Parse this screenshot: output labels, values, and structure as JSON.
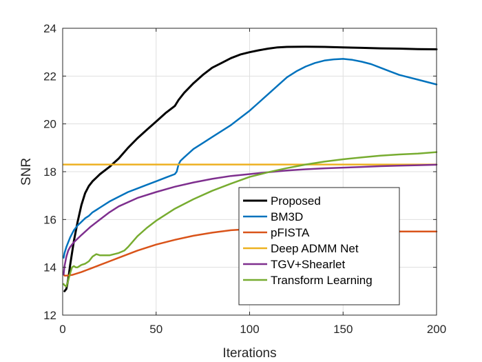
{
  "chart_data": {
    "type": "line",
    "title": "",
    "xlabel": "Iterations",
    "ylabel": "SNR",
    "xlim": [
      0,
      200
    ],
    "ylim": [
      12,
      24
    ],
    "xticks": [
      0,
      50,
      100,
      150,
      200
    ],
    "yticks": [
      12,
      14,
      16,
      18,
      20,
      22,
      24
    ],
    "grid": true,
    "legend_position": "bottom-right",
    "series": [
      {
        "name": "Proposed",
        "color": "#000000",
        "x": [
          1,
          2,
          3,
          4,
          5,
          6,
          8,
          10,
          12,
          14,
          16,
          18,
          20,
          25,
          30,
          35,
          40,
          45,
          50,
          55,
          60,
          62,
          65,
          70,
          75,
          80,
          85,
          90,
          95,
          100,
          105,
          110,
          115,
          120,
          130,
          140,
          150,
          160,
          170,
          180,
          190,
          200
        ],
        "values": [
          13.0,
          13.1,
          13.5,
          14.1,
          14.6,
          15.1,
          15.9,
          16.6,
          17.1,
          17.4,
          17.6,
          17.75,
          17.9,
          18.2,
          18.55,
          19.0,
          19.4,
          19.75,
          20.1,
          20.45,
          20.75,
          21.0,
          21.3,
          21.7,
          22.05,
          22.35,
          22.55,
          22.75,
          22.9,
          23.0,
          23.08,
          23.15,
          23.2,
          23.22,
          23.23,
          23.22,
          23.2,
          23.18,
          23.16,
          23.15,
          23.13,
          23.12
        ]
      },
      {
        "name": "BM3D",
        "color": "#0072BD",
        "x": [
          0.5,
          1,
          2,
          3,
          4,
          5,
          6,
          8,
          10,
          12,
          14,
          16,
          18,
          20,
          25,
          30,
          35,
          40,
          45,
          50,
          55,
          60,
          61,
          62,
          63,
          65,
          70,
          75,
          80,
          85,
          90,
          95,
          100,
          105,
          110,
          115,
          120,
          125,
          130,
          135,
          140,
          145,
          150,
          155,
          160,
          165,
          170,
          175,
          180,
          185,
          190,
          195,
          200
        ],
        "values": [
          14.4,
          14.6,
          14.85,
          15.05,
          15.25,
          15.4,
          15.55,
          15.75,
          15.9,
          16.05,
          16.15,
          16.3,
          16.4,
          16.5,
          16.75,
          16.95,
          17.15,
          17.3,
          17.45,
          17.6,
          17.75,
          17.9,
          18.0,
          18.3,
          18.45,
          18.6,
          18.95,
          19.2,
          19.45,
          19.7,
          19.95,
          20.25,
          20.55,
          20.9,
          21.25,
          21.6,
          21.95,
          22.2,
          22.4,
          22.55,
          22.65,
          22.7,
          22.72,
          22.68,
          22.6,
          22.5,
          22.35,
          22.2,
          22.05,
          21.95,
          21.85,
          21.75,
          21.65
        ]
      },
      {
        "name": "pFISTA",
        "color": "#D95319",
        "x": [
          0.5,
          1,
          2,
          5,
          10,
          15,
          20,
          25,
          30,
          40,
          50,
          60,
          70,
          80,
          90,
          100,
          110,
          120,
          130,
          140,
          150,
          160,
          170,
          180,
          190,
          200
        ],
        "values": [
          13.7,
          13.65,
          13.65,
          13.68,
          13.8,
          13.95,
          14.1,
          14.25,
          14.4,
          14.7,
          14.95,
          15.15,
          15.32,
          15.45,
          15.55,
          15.6,
          15.62,
          15.62,
          15.6,
          15.57,
          15.54,
          15.52,
          15.51,
          15.5,
          15.5,
          15.5
        ]
      },
      {
        "name": "Deep ADMM Net",
        "color": "#EDB120",
        "x": [
          0.5,
          200
        ],
        "values": [
          18.3,
          18.3
        ]
      },
      {
        "name": "TGV+Shearlet",
        "color": "#7E2F8E",
        "x": [
          0.5,
          1,
          2,
          3,
          4,
          6,
          8,
          10,
          15,
          20,
          25,
          30,
          40,
          50,
          60,
          70,
          80,
          90,
          100,
          110,
          120,
          130,
          140,
          150,
          160,
          170,
          180,
          190,
          200
        ],
        "values": [
          13.7,
          14.05,
          14.45,
          14.7,
          14.85,
          15.05,
          15.2,
          15.35,
          15.7,
          16.0,
          16.3,
          16.55,
          16.9,
          17.15,
          17.37,
          17.55,
          17.7,
          17.82,
          17.9,
          17.98,
          18.05,
          18.1,
          18.14,
          18.17,
          18.2,
          18.23,
          18.25,
          18.27,
          18.29
        ]
      },
      {
        "name": "Transform Learning",
        "color": "#77AC30",
        "x": [
          0.5,
          1,
          2,
          3,
          4,
          5,
          6,
          7,
          8,
          9,
          10,
          12,
          14,
          16,
          18,
          20,
          25,
          30,
          33,
          35,
          40,
          45,
          50,
          60,
          70,
          80,
          90,
          100,
          110,
          120,
          130,
          140,
          150,
          160,
          170,
          180,
          190,
          200
        ],
        "values": [
          13.3,
          13.25,
          13.2,
          13.45,
          13.75,
          14.0,
          14.05,
          14.0,
          14.0,
          14.05,
          14.1,
          14.15,
          14.25,
          14.45,
          14.55,
          14.5,
          14.5,
          14.6,
          14.7,
          14.85,
          15.3,
          15.65,
          15.95,
          16.45,
          16.85,
          17.2,
          17.5,
          17.78,
          17.98,
          18.15,
          18.3,
          18.42,
          18.52,
          18.6,
          18.67,
          18.72,
          18.76,
          18.82
        ]
      }
    ]
  }
}
